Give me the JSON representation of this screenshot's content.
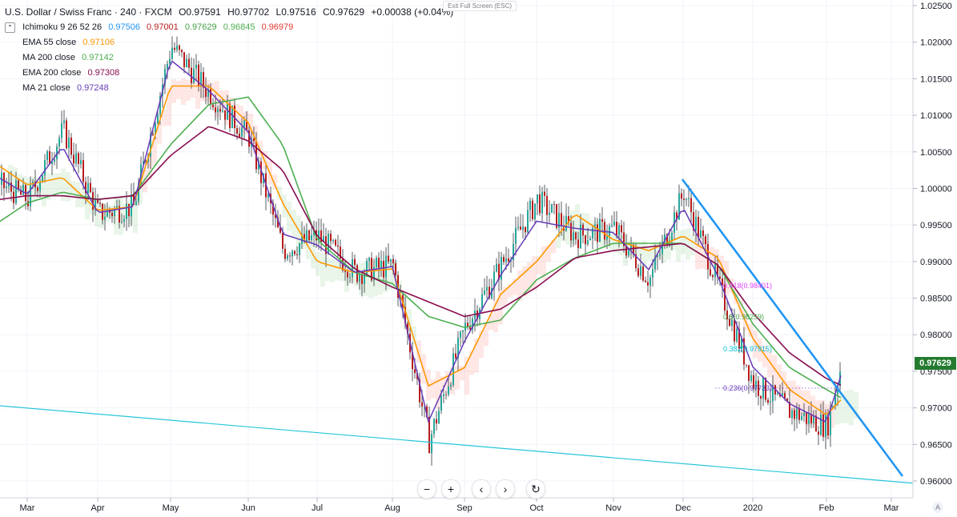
{
  "symbol_line": {
    "title": "U.S. Dollar / Swiss Franc · 240 · FXCM",
    "o_label": "O",
    "o_value": "0.97591",
    "h_label": "H",
    "h_value": "0.97702",
    "l_label": "L",
    "l_value": "0.97516",
    "c_label": "C",
    "c_value": "0.97629",
    "change": "+0.00038 (+0.04%)"
  },
  "indicators": {
    "ichimoku": {
      "label": "Ichimoku 9 26 52 26",
      "values": [
        "0.97506",
        "0.97001",
        "0.97629",
        "0.96845",
        "0.96979"
      ],
      "colors": [
        "#2196f3",
        "#b71c1c",
        "#43a047",
        "#4caf50",
        "#e53935"
      ]
    },
    "ema55": {
      "label": "EMA 55 close",
      "value": "0.97106",
      "color": "#ff9800"
    },
    "ma200": {
      "label": "MA 200 close",
      "value": "0.97142",
      "color": "#4caf50"
    },
    "ema200": {
      "label": "EMA 200 close",
      "value": "0.97308",
      "color": "#880e4f"
    },
    "ma21": {
      "label": "MA 21 close",
      "value": "0.97248",
      "color": "#673ab7"
    }
  },
  "exit_label": "Exit Full Screen (ESC)",
  "last_price": {
    "value": "0.97629",
    "color": "#247b2f"
  },
  "fib_levels": [
    {
      "label": "0.618(0.98401)",
      "color": "#e040fb"
    },
    {
      "label": "0.5(0.98259)",
      "color": "#43a047"
    },
    {
      "label": "0.382(0.97915)",
      "color": "#00bcd4"
    },
    {
      "label": "0.236(0.97733)",
      "color": "#673ab7"
    }
  ],
  "nav_buttons": {
    "zoom_out": "−",
    "zoom_in": "+",
    "back": "‹",
    "forward": "›",
    "reset": "↻"
  },
  "auto_scale": "A",
  "chart_data": {
    "type": "line",
    "title": "U.S. Dollar / Swiss Franc · 240 · FXCM",
    "ylim": [
      0.958,
      1.0265
    ],
    "y_ticks": [
      "1.02500",
      "1.02000",
      "1.01500",
      "1.01000",
      "1.00500",
      "1.00000",
      "0.99500",
      "0.99000",
      "0.98500",
      "0.98000",
      "0.97500",
      "0.97000",
      "0.96500",
      "0.96000"
    ],
    "x_ticks": [
      "Mar",
      "Apr",
      "May",
      "Jun",
      "Jul",
      "Aug",
      "Sep",
      "Oct",
      "Nov",
      "Dec",
      "2020",
      "Feb",
      "Mar"
    ],
    "x": [
      "Feb 20",
      "Mar 1",
      "Mar 15",
      "Apr 1",
      "Apr 15",
      "May 1",
      "May 15",
      "Jun 1",
      "Jun 15",
      "Jul 1",
      "Jul 15",
      "Aug 1",
      "Aug 15",
      "Sep 1",
      "Sep 15",
      "Oct 1",
      "Oct 15",
      "Nov 1",
      "Nov 15",
      "Dec 1",
      "Dec 15",
      "Jan 1",
      "Jan 15",
      "Feb 1",
      "Feb 10"
    ],
    "series": [
      {
        "name": "USD/CHF",
        "values": [
          1.0005,
          0.9985,
          1.008,
          0.9965,
          0.9975,
          1.0195,
          1.013,
          1.007,
          0.9915,
          0.9935,
          0.9885,
          0.9895,
          0.9655,
          0.981,
          0.9895,
          0.9985,
          0.9935,
          0.9945,
          0.9875,
          0.9995,
          0.9865,
          0.9735,
          0.9695,
          0.9675,
          0.9762
        ]
      },
      {
        "name": "EMA 55 close",
        "values": [
          1.003,
          1.0005,
          1.0015,
          0.997,
          0.9975,
          1.014,
          1.014,
          1.009,
          0.998,
          0.99,
          0.9885,
          0.989,
          0.973,
          0.9755,
          0.9855,
          0.99,
          0.9965,
          0.993,
          0.9915,
          0.9935,
          0.9905,
          0.9795,
          0.9725,
          0.969,
          0.9711
        ]
      },
      {
        "name": "MA 200 close",
        "values": [
          0.9955,
          0.998,
          0.9995,
          0.9985,
          0.999,
          1.006,
          1.0115,
          1.0125,
          1.006,
          0.993,
          0.9885,
          0.987,
          0.9825,
          0.981,
          0.982,
          0.9875,
          0.9905,
          0.9925,
          0.9925,
          0.9925,
          0.9895,
          0.9815,
          0.9755,
          0.9725,
          0.9714
        ]
      },
      {
        "name": "EMA 200 close",
        "values": [
          0.9985,
          0.999,
          0.999,
          0.9985,
          0.999,
          1.0045,
          1.0085,
          1.0065,
          1.0025,
          0.9935,
          0.989,
          0.9865,
          0.9845,
          0.9825,
          0.9835,
          0.9865,
          0.9905,
          0.9915,
          0.992,
          0.9925,
          0.9895,
          0.983,
          0.9775,
          0.974,
          0.9731
        ]
      }
    ]
  }
}
